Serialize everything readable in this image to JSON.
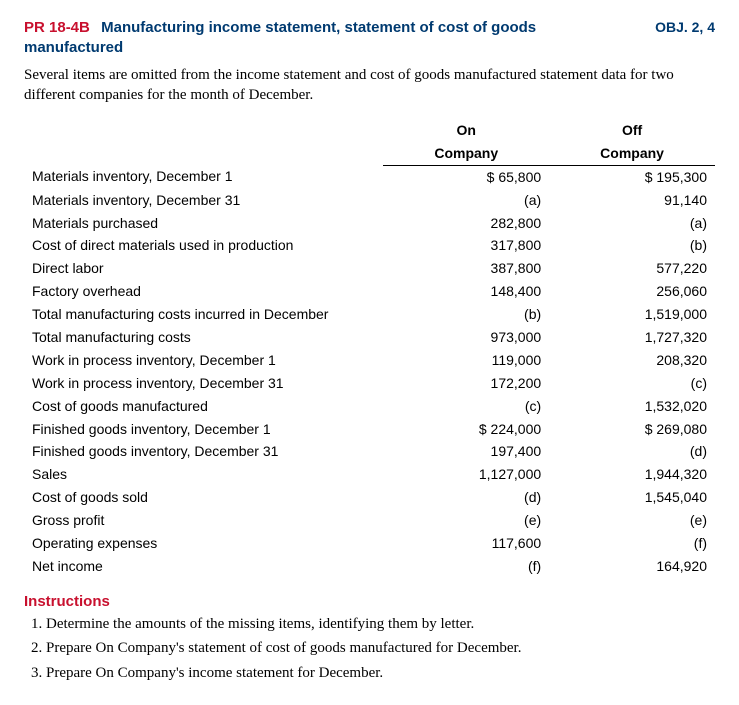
{
  "header": {
    "code": "PR 18-4B",
    "title_line1": "Manufacturing income statement, statement of cost of goods",
    "title_line2": "manufactured",
    "objectives": "OBJ. 2, 4"
  },
  "intro": "Several items are omitted from the income statement and cost of goods manufactured statement data for two different companies for the month of December.",
  "columns": {
    "c1_top": "On",
    "c1_bot": "Company",
    "c2_top": "Off",
    "c2_bot": "Company"
  },
  "rows": [
    {
      "label": "Materials inventory, December 1",
      "on": "$   65,800",
      "off": "$  195,300"
    },
    {
      "label": "Materials inventory, December 31",
      "on": "(a)",
      "off": "91,140"
    },
    {
      "label": "Materials purchased",
      "on": "282,800",
      "off": "(a)"
    },
    {
      "label": "Cost of direct materials used in production",
      "on": "317,800",
      "off": "(b)"
    },
    {
      "label": "Direct labor",
      "on": "387,800",
      "off": "577,220"
    },
    {
      "label": "Factory overhead",
      "on": "148,400",
      "off": "256,060"
    },
    {
      "label": "Total manufacturing costs incurred in December",
      "on": "(b)",
      "off": "1,519,000"
    },
    {
      "label": "Total manufacturing costs",
      "on": "973,000",
      "off": "1,727,320"
    },
    {
      "label": "Work in process inventory, December 1",
      "on": "119,000",
      "off": "208,320"
    },
    {
      "label": "Work in process inventory, December 31",
      "on": "172,200",
      "off": "(c)"
    },
    {
      "label": "Cost of goods manufactured",
      "on": "(c)",
      "off": "1,532,020"
    },
    {
      "label": "Finished goods inventory, December 1",
      "on": "$  224,000",
      "off": "$  269,080"
    },
    {
      "label": "Finished goods inventory, December 31",
      "on": "197,400",
      "off": "(d)"
    },
    {
      "label": "Sales",
      "on": "1,127,000",
      "off": "1,944,320"
    },
    {
      "label": "Cost of goods sold",
      "on": "(d)",
      "off": "1,545,040"
    },
    {
      "label": "Gross profit",
      "on": "(e)",
      "off": "(e)"
    },
    {
      "label": "Operating expenses",
      "on": "117,600",
      "off": "(f)"
    },
    {
      "label": "Net income",
      "on": "(f)",
      "off": "164,920"
    }
  ],
  "instructions_heading": "Instructions",
  "instructions": [
    "Determine the amounts of the missing items, identifying them by letter.",
    "Prepare On Company's statement of cost of goods manufactured for December.",
    "Prepare On Company's income statement for December."
  ]
}
